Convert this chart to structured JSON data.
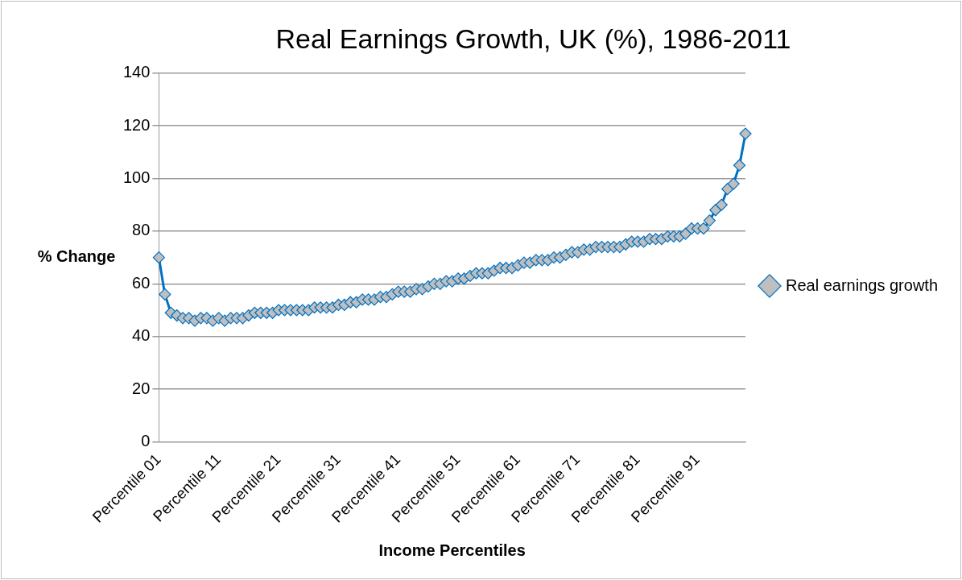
{
  "chart_data": {
    "type": "line",
    "title": "Real Earnings Growth, UK (%), 1986-2011",
    "xlabel": "Income Percentiles",
    "ylabel": "% Change",
    "categories": [
      "Percentile 01",
      null,
      null,
      null,
      null,
      null,
      null,
      null,
      null,
      null,
      "Percentile 11",
      null,
      null,
      null,
      null,
      null,
      null,
      null,
      null,
      null,
      "Percentile 21",
      null,
      null,
      null,
      null,
      null,
      null,
      null,
      null,
      null,
      "Percentile 31",
      null,
      null,
      null,
      null,
      null,
      null,
      null,
      null,
      null,
      "Percentile 41",
      null,
      null,
      null,
      null,
      null,
      null,
      null,
      null,
      null,
      "Percentile 51",
      null,
      null,
      null,
      null,
      null,
      null,
      null,
      null,
      null,
      "Percentile 61",
      null,
      null,
      null,
      null,
      null,
      null,
      null,
      null,
      null,
      "Percentile 71",
      null,
      null,
      null,
      null,
      null,
      null,
      null,
      null,
      null,
      "Percentile 81",
      null,
      null,
      null,
      null,
      null,
      null,
      null,
      null,
      null,
      "Percentile 91",
      null,
      null,
      null,
      null,
      null,
      null,
      null,
      null
    ],
    "series": [
      {
        "name": "Real earnings growth",
        "color": "#0070c0",
        "values": [
          70,
          56,
          49,
          48,
          47,
          47,
          46,
          47,
          47,
          46,
          47,
          46,
          47,
          47,
          47,
          48,
          49,
          49,
          49,
          49,
          50,
          50,
          50,
          50,
          50,
          50,
          51,
          51,
          51,
          51,
          52,
          52,
          53,
          53,
          54,
          54,
          54,
          55,
          55,
          56,
          57,
          57,
          57,
          58,
          58,
          59,
          60,
          60,
          61,
          61,
          62,
          62,
          63,
          64,
          64,
          64,
          65,
          66,
          66,
          66,
          67,
          68,
          68,
          69,
          69,
          69,
          70,
          70,
          71,
          72,
          72,
          73,
          73,
          74,
          74,
          74,
          74,
          74,
          75,
          76,
          76,
          76,
          77,
          77,
          77,
          78,
          78,
          78,
          79,
          81,
          81,
          81,
          84,
          88,
          90,
          96,
          98,
          105,
          117
        ]
      }
    ],
    "ylim": [
      0,
      140
    ],
    "yticks": [
      0,
      20,
      40,
      60,
      80,
      100,
      120,
      140
    ],
    "grid": "y",
    "legend": "right",
    "marker": "diamond",
    "line_style": "solid"
  }
}
